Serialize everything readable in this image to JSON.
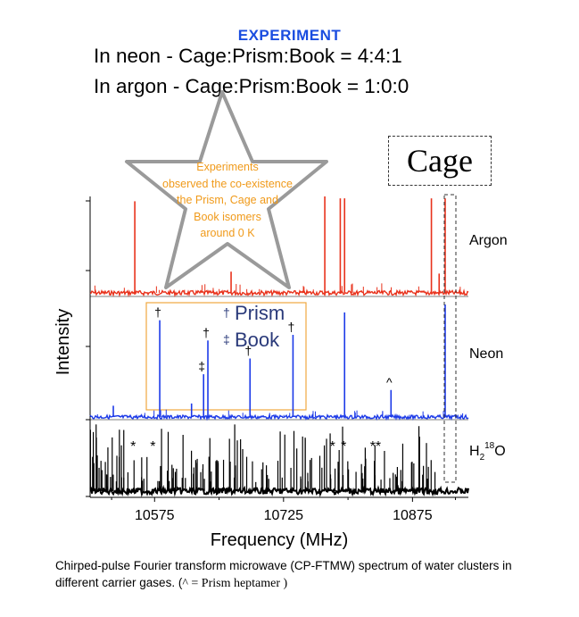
{
  "header": {
    "experiment_label": "EXPERIMENT",
    "neon_ratio": "In neon - Cage:Prism:Book =  4:4:1",
    "argon_ratio": "In argon - Cage:Prism:Book =  1:0:0"
  },
  "cage_box_label": "Cage",
  "star_callout": {
    "lines": [
      "Experiments",
      "observed the co-existence",
      "the Prism, Cage and",
      "Book isomers",
      "around 0 K"
    ]
  },
  "legend_box": {
    "prism_label": "Prism",
    "prism_mark": "†",
    "book_label": "Book",
    "book_mark": "‡"
  },
  "caption": {
    "main": "Chirped-pulse Fourier transform microwave (CP-FTMW) spectrum of water clusters in different carrier gases. (",
    "serif_note": "^  = Prism heptamer )"
  },
  "colors": {
    "argon": "#e8321c",
    "neon": "#1c3ae8",
    "h2o18": "#000000",
    "star_text": "#f09a1a",
    "title_blue": "#1a4de0",
    "legend_box_border": "#f0a840",
    "legend_text": "#2a3a7a"
  },
  "chart_data": {
    "type": "line",
    "xlabel": "Frequency (MHz)",
    "ylabel": "Intensity",
    "xlim": [
      10500,
      10940
    ],
    "xticks": [
      10575,
      10725,
      10875
    ],
    "tick_labels": [
      "10575",
      "10725",
      "10875"
    ],
    "series": [
      {
        "name": "Argon",
        "peaks": [
          {
            "x": 10552,
            "y": 0.95
          },
          {
            "x": 10664,
            "y": 0.22
          },
          {
            "x": 10773,
            "y": 1.0
          },
          {
            "x": 10791,
            "y": 0.98
          },
          {
            "x": 10796,
            "y": 0.98
          },
          {
            "x": 10897,
            "y": 0.98
          },
          {
            "x": 10906,
            "y": 0.2
          },
          {
            "x": 10913,
            "y": 0.98
          }
        ]
      },
      {
        "name": "Neon",
        "peaks": [
          {
            "x": 10527,
            "y": 0.1,
            "mark": ""
          },
          {
            "x": 10581,
            "y": 0.86,
            "mark": "†"
          },
          {
            "x": 10618,
            "y": 0.12,
            "mark": ""
          },
          {
            "x": 10632,
            "y": 0.38,
            "mark": "‡"
          },
          {
            "x": 10637,
            "y": 0.68,
            "mark": "†"
          },
          {
            "x": 10686,
            "y": 0.52,
            "mark": "†"
          },
          {
            "x": 10736,
            "y": 0.73,
            "mark": "†"
          },
          {
            "x": 10796,
            "y": 0.93,
            "mark": ""
          },
          {
            "x": 10850,
            "y": 0.24,
            "mark": "^"
          },
          {
            "x": 10913,
            "y": 1.0,
            "mark": ""
          }
        ]
      },
      {
        "name": "H₂¹⁸O",
        "label_base": "H",
        "label_sub": "2",
        "label_sup": "18",
        "label_tail": "O",
        "stars": [
          {
            "x": 10550,
            "mark": "*"
          },
          {
            "x": 10573,
            "mark": "*"
          },
          {
            "x": 10782,
            "mark": "*"
          },
          {
            "x": 10795,
            "mark": "*"
          },
          {
            "x": 10832,
            "mark": "**"
          }
        ]
      }
    ]
  }
}
